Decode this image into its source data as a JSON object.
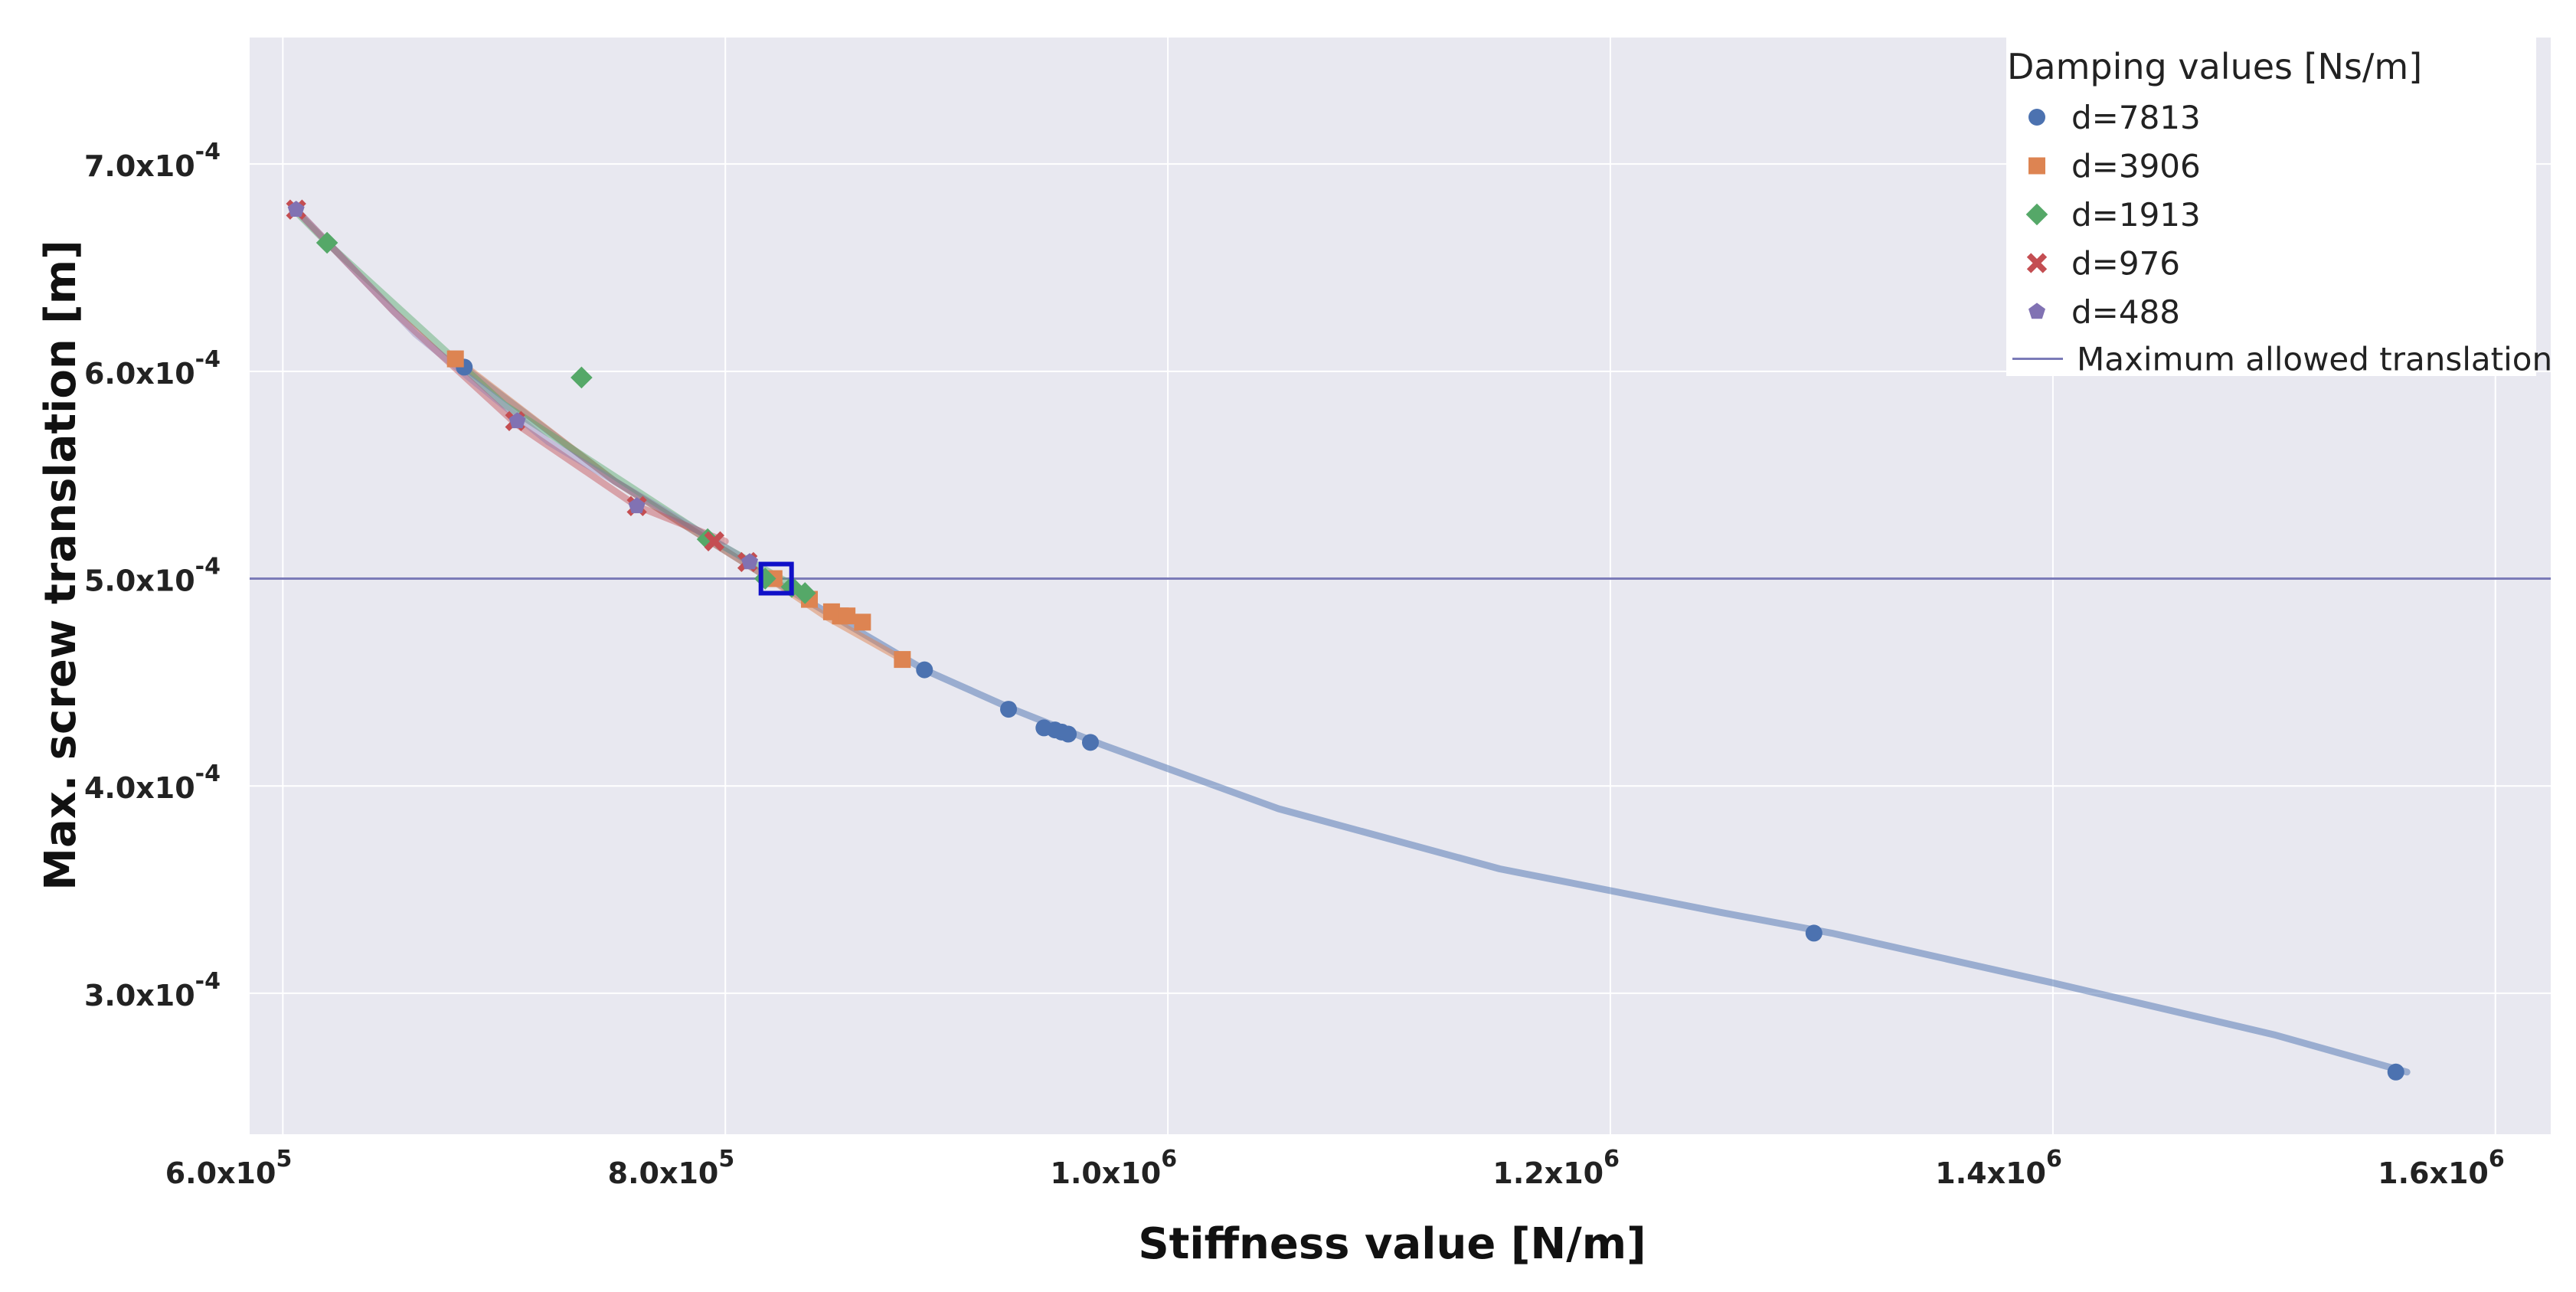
{
  "chart_data": {
    "type": "scatter",
    "title": "",
    "xlabel": "Stiffness value [N/m]",
    "ylabel": "Max. screw translation [m]",
    "xlim": [
      585000,
      1625000
    ],
    "ylim": [
      0.000232,
      0.000761
    ],
    "grid": true,
    "x_ticks": [
      {
        "value": 600000,
        "mantissa": "6.0x10",
        "exp": "5"
      },
      {
        "value": 800000,
        "mantissa": "8.0x10",
        "exp": "5"
      },
      {
        "value": 1000000,
        "mantissa": "1.0x10",
        "exp": "6"
      },
      {
        "value": 1200000,
        "mantissa": "1.2x10",
        "exp": "6"
      },
      {
        "value": 1400000,
        "mantissa": "1.4x10",
        "exp": "6"
      },
      {
        "value": 1600000,
        "mantissa": "1.6x10",
        "exp": "6"
      }
    ],
    "y_ticks": [
      {
        "value": 0.0003,
        "mantissa": "3.0x10",
        "exp": "-4"
      },
      {
        "value": 0.0004,
        "mantissa": "4.0x10",
        "exp": "-4"
      },
      {
        "value": 0.0005,
        "mantissa": "5.0x10",
        "exp": "-4"
      },
      {
        "value": 0.0006,
        "mantissa": "6.0x10",
        "exp": "-4"
      },
      {
        "value": 0.0007,
        "mantissa": "7.0x10",
        "exp": "-4"
      }
    ],
    "legend": {
      "title": "Damping values [Ns/m]",
      "position": "top-right"
    },
    "series": [
      {
        "name": "d=7813",
        "marker": "circle",
        "color": "#4C72B0",
        "curve_x": [
          682000,
          750000,
          820000,
          890000,
          930000,
          970000,
          1050000,
          1150000,
          1250000,
          1300000,
          1400000,
          1500000,
          1560000
        ],
        "curve_y": [
          0.000602,
          0.000547,
          0.0005,
          0.000456,
          0.000437,
          0.00042,
          0.000389,
          0.00036,
          0.000339,
          0.000329,
          0.000305,
          0.00028,
          0.000262
        ],
        "points_x": [
          682000,
          890000,
          928000,
          944000,
          949000,
          952000,
          955000,
          965000,
          1292000,
          1555000
        ],
        "points_y": [
          0.000602,
          0.000456,
          0.000437,
          0.000428,
          0.000427,
          0.000426,
          0.000425,
          0.000421,
          0.000329,
          0.000262
        ]
      },
      {
        "name": "d=3906",
        "marker": "square",
        "color": "#DD8452",
        "curve_x": [
          678000,
          750000,
          820000,
          845000,
          880000
        ],
        "curve_y": [
          0.000606,
          0.000547,
          0.0005,
          0.000482,
          0.000461
        ],
        "points_x": [
          678000,
          822000,
          838000,
          848000,
          852000,
          855000,
          862000,
          880000
        ],
        "points_y": [
          0.000606,
          0.0005,
          0.00049,
          0.000484,
          0.000482,
          0.000482,
          0.000479,
          0.000461
        ]
      },
      {
        "name": "d=1913",
        "marker": "diamond",
        "color": "#55A868",
        "curve_x": [
          605000,
          620000,
          700000,
          795000,
          837000
        ],
        "curve_y": [
          0.000678,
          0.000662,
          0.000584,
          0.000518,
          0.000493
        ],
        "points_x": [
          620000,
          735000,
          792000,
          818000,
          830000,
          836000
        ],
        "points_y": [
          0.000662,
          0.000597,
          0.000519,
          0.0005,
          0.000496,
          0.000493
        ]
      },
      {
        "name": "d=976",
        "marker": "x",
        "color": "#C44E52",
        "curve_x": [
          606000,
          650000,
          705000,
          760000,
          800000
        ],
        "curve_y": [
          0.000678,
          0.000629,
          0.000575,
          0.000535,
          0.000518
        ],
        "points_x": [
          606000,
          705000,
          760000,
          795000,
          810000
        ],
        "points_y": [
          0.000678,
          0.000576,
          0.000535,
          0.000518,
          0.000508
        ]
      },
      {
        "name": "d=488",
        "marker": "pentagon",
        "color": "#8172B3",
        "curve_x": [
          606000,
          660000,
          720000,
          780000,
          811000
        ],
        "curve_y": [
          0.000678,
          0.000618,
          0.000566,
          0.000528,
          0.000508
        ],
        "points_x": [
          606000,
          706000,
          760000,
          811000
        ],
        "points_y": [
          0.000678,
          0.000576,
          0.000535,
          0.000508
        ]
      }
    ],
    "threshold": {
      "name": "Maximum allowed translation",
      "value": 0.0005,
      "color": "#7B7BB8"
    },
    "highlight": {
      "x": 823000,
      "y": 0.0005,
      "color": "#1010C8"
    }
  }
}
